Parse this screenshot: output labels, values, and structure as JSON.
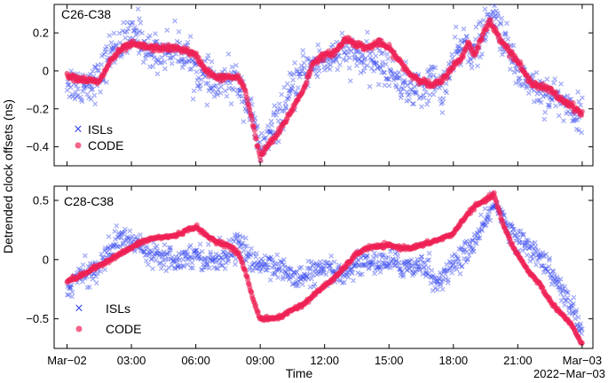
{
  "chart_data": {
    "type": "scatter",
    "ylabel": "Detrended clock offsets (ns)",
    "xlabel": "Time",
    "x_unit": "hours since 2022-Mar-02 00:00",
    "xlim": [
      -0.6,
      24.5
    ],
    "x_ticks": [
      {
        "value": 0,
        "label": "Mar−02"
      },
      {
        "value": 3,
        "label": "03:00"
      },
      {
        "value": 6,
        "label": "06:00"
      },
      {
        "value": 9,
        "label": "09:00"
      },
      {
        "value": 12,
        "label": "12:00"
      },
      {
        "value": 15,
        "label": "15:00"
      },
      {
        "value": 18,
        "label": "18:00"
      },
      {
        "value": 21,
        "label": "21:00"
      },
      {
        "value": 24,
        "label": "Mar−03"
      }
    ],
    "x_date_label": "2022−Mar−03",
    "series_styles": [
      {
        "name": "ISLs",
        "color": "#3344ee",
        "marker": "x"
      },
      {
        "name": "CODE",
        "color": "#ee2255",
        "marker": "o"
      }
    ],
    "panels": [
      {
        "title": "C26-C38",
        "ylim": [
          -0.5,
          0.35
        ],
        "y_ticks": [
          {
            "value": 0.2,
            "label": "0.2"
          },
          {
            "value": 0,
            "label": "0"
          },
          {
            "value": -0.2,
            "label": "−0.2"
          },
          {
            "value": -0.4,
            "label": "−0.4"
          }
        ],
        "legend": [
          "ISLs",
          "CODE"
        ],
        "series": [
          {
            "name": "ISLs",
            "noise": 0.05,
            "points": [
              [
                0,
                -0.05
              ],
              [
                0.5,
                -0.08
              ],
              [
                1,
                -0.06
              ],
              [
                1.5,
                -0.05
              ],
              [
                2,
                0.1
              ],
              [
                2.5,
                0.14
              ],
              [
                3,
                0.17
              ],
              [
                3.3,
                0.22
              ],
              [
                3.7,
                0.1
              ],
              [
                4.5,
                0.1
              ],
              [
                5,
                0.12
              ],
              [
                5.5,
                0.1
              ],
              [
                6,
                0.0
              ],
              [
                6.5,
                -0.05
              ],
              [
                7,
                -0.08
              ],
              [
                7.5,
                -0.05
              ],
              [
                8,
                -0.06
              ],
              [
                8.5,
                -0.2
              ],
              [
                9,
                -0.42
              ],
              [
                9.5,
                -0.33
              ],
              [
                10,
                -0.22
              ],
              [
                10.5,
                -0.1
              ],
              [
                11,
                0.0
              ],
              [
                12,
                0.06
              ],
              [
                13,
                0.1
              ],
              [
                14,
                0.05
              ],
              [
                14.5,
                0.05
              ],
              [
                15,
                0.0
              ],
              [
                15.5,
                -0.05
              ],
              [
                16,
                -0.1
              ],
              [
                16.5,
                -0.1
              ],
              [
                17,
                -0.05
              ],
              [
                17.5,
                -0.1
              ],
              [
                18,
                0.05
              ],
              [
                18.5,
                0.15
              ],
              [
                19,
                0.1
              ],
              [
                19.5,
                0.22
              ],
              [
                19.9,
                0.3
              ],
              [
                20.5,
                0.12
              ],
              [
                21,
                0.0
              ],
              [
                21.5,
                -0.05
              ],
              [
                22,
                -0.1
              ],
              [
                23,
                -0.15
              ],
              [
                24,
                -0.25
              ]
            ]
          },
          {
            "name": "CODE",
            "noise": 0.008,
            "points": [
              [
                0,
                -0.02
              ],
              [
                0.5,
                -0.04
              ],
              [
                1,
                -0.05
              ],
              [
                1.5,
                -0.06
              ],
              [
                2,
                0.05
              ],
              [
                2.5,
                0.11
              ],
              [
                3,
                0.14
              ],
              [
                3.5,
                0.13
              ],
              [
                4,
                0.12
              ],
              [
                5,
                0.12
              ],
              [
                5.5,
                0.11
              ],
              [
                6,
                0.08
              ],
              [
                6.5,
                0.0
              ],
              [
                7,
                -0.04
              ],
              [
                7.5,
                -0.03
              ],
              [
                8,
                -0.04
              ],
              [
                8.3,
                -0.1
              ],
              [
                8.7,
                -0.3
              ],
              [
                9,
                -0.46
              ],
              [
                9.3,
                -0.4
              ],
              [
                9.7,
                -0.35
              ],
              [
                10,
                -0.3
              ],
              [
                10.5,
                -0.2
              ],
              [
                11,
                -0.1
              ],
              [
                11.5,
                0.05
              ],
              [
                12,
                0.08
              ],
              [
                12.5,
                0.1
              ],
              [
                13,
                0.17
              ],
              [
                13.5,
                0.14
              ],
              [
                14,
                0.12
              ],
              [
                14.5,
                0.15
              ],
              [
                15,
                0.12
              ],
              [
                15.5,
                0.05
              ],
              [
                16,
                -0.02
              ],
              [
                16.5,
                -0.05
              ],
              [
                17,
                -0.08
              ],
              [
                17.5,
                -0.05
              ],
              [
                18,
                0.03
              ],
              [
                18.3,
                0.05
              ],
              [
                18.7,
                0.15
              ],
              [
                19,
                0.08
              ],
              [
                19.3,
                0.18
              ],
              [
                19.7,
                0.26
              ],
              [
                20,
                0.2
              ],
              [
                20.5,
                0.12
              ],
              [
                21,
                0.05
              ],
              [
                21.5,
                -0.05
              ],
              [
                22,
                -0.08
              ],
              [
                22.5,
                -0.1
              ],
              [
                23,
                -0.15
              ],
              [
                23.5,
                -0.18
              ],
              [
                24,
                -0.23
              ]
            ]
          }
        ]
      },
      {
        "title": "C28-C38",
        "ylim": [
          -0.75,
          0.62
        ],
        "y_ticks": [
          {
            "value": 0.5,
            "label": "0.5"
          },
          {
            "value": 0,
            "label": "0"
          },
          {
            "value": -0.5,
            "label": "−0.5"
          }
        ],
        "legend": [
          "ISLs",
          "CODE"
        ],
        "series": [
          {
            "name": "ISLs",
            "noise": 0.05,
            "points": [
              [
                0,
                -0.25
              ],
              [
                0.5,
                -0.15
              ],
              [
                1,
                -0.12
              ],
              [
                1.5,
                -0.05
              ],
              [
                2,
                0.1
              ],
              [
                2.5,
                0.18
              ],
              [
                3,
                0.15
              ],
              [
                3.5,
                0.12
              ],
              [
                4,
                0.05
              ],
              [
                4.5,
                0.05
              ],
              [
                5,
                0.0
              ],
              [
                5.5,
                0.02
              ],
              [
                6,
                0.05
              ],
              [
                6.5,
                0.0
              ],
              [
                7,
                0.0
              ],
              [
                7.5,
                0.05
              ],
              [
                8,
                0.15
              ],
              [
                8.5,
                0.0
              ],
              [
                9,
                -0.05
              ],
              [
                9.5,
                -0.02
              ],
              [
                10,
                -0.08
              ],
              [
                10.5,
                -0.15
              ],
              [
                11,
                -0.15
              ],
              [
                11.5,
                -0.1
              ],
              [
                12,
                -0.1
              ],
              [
                12.5,
                -0.12
              ],
              [
                13,
                -0.1
              ],
              [
                13.5,
                -0.05
              ],
              [
                14,
                0.0
              ],
              [
                14.5,
                -0.05
              ],
              [
                15,
                0.0
              ],
              [
                15.5,
                -0.05
              ],
              [
                16,
                -0.05
              ],
              [
                16.5,
                -0.05
              ],
              [
                16.9,
                -0.05
              ],
              [
                17,
                -0.2
              ],
              [
                17.5,
                -0.15
              ],
              [
                18,
                -0.05
              ],
              [
                18.5,
                0.05
              ],
              [
                19,
                0.15
              ],
              [
                19.5,
                0.3
              ],
              [
                19.9,
                0.5
              ],
              [
                20.3,
                0.35
              ],
              [
                20.8,
                0.2
              ],
              [
                21.5,
                0.1
              ],
              [
                22,
                0.05
              ],
              [
                22.5,
                -0.1
              ],
              [
                23,
                -0.25
              ],
              [
                23.5,
                -0.4
              ],
              [
                24,
                -0.62
              ]
            ]
          },
          {
            "name": "CODE",
            "noise": 0.008,
            "points": [
              [
                0,
                -0.18
              ],
              [
                0.5,
                -0.15
              ],
              [
                1,
                -0.1
              ],
              [
                1.5,
                -0.05
              ],
              [
                2,
                0.0
              ],
              [
                3,
                0.1
              ],
              [
                3.5,
                0.15
              ],
              [
                4,
                0.18
              ],
              [
                5,
                0.2
              ],
              [
                5.5,
                0.24
              ],
              [
                6,
                0.28
              ],
              [
                6.5,
                0.2
              ],
              [
                7,
                0.15
              ],
              [
                7.5,
                0.12
              ],
              [
                8,
                0.05
              ],
              [
                8.3,
                -0.1
              ],
              [
                8.7,
                -0.35
              ],
              [
                9,
                -0.5
              ],
              [
                9.5,
                -0.5
              ],
              [
                10,
                -0.48
              ],
              [
                10.5,
                -0.42
              ],
              [
                11,
                -0.38
              ],
              [
                11.5,
                -0.3
              ],
              [
                12,
                -0.22
              ],
              [
                12.5,
                -0.15
              ],
              [
                13,
                -0.05
              ],
              [
                13.5,
                0.05
              ],
              [
                14,
                0.1
              ],
              [
                15,
                0.12
              ],
              [
                15.5,
                0.1
              ],
              [
                16,
                0.1
              ],
              [
                16.5,
                0.12
              ],
              [
                17,
                0.15
              ],
              [
                17.5,
                0.18
              ],
              [
                18,
                0.22
              ],
              [
                18.5,
                0.35
              ],
              [
                19,
                0.45
              ],
              [
                19.5,
                0.5
              ],
              [
                19.9,
                0.55
              ],
              [
                20.3,
                0.3
              ],
              [
                20.8,
                0.1
              ],
              [
                21.5,
                -0.1
              ],
              [
                22,
                -0.2
              ],
              [
                22.5,
                -0.35
              ],
              [
                23,
                -0.45
              ],
              [
                23.5,
                -0.55
              ],
              [
                24,
                -0.72
              ]
            ]
          }
        ]
      }
    ]
  }
}
